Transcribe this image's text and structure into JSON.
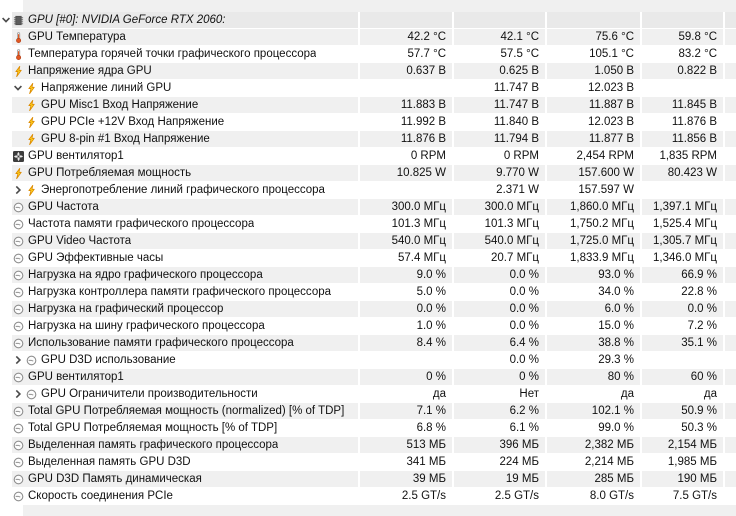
{
  "app": {
    "name": "sensor-status-panel",
    "colors": {
      "zebra_shade": "#f0f0f0",
      "header_shade": "#e9e9e9",
      "bolt_yellow": "#ffd21e",
      "bolt_outline": "#dc8a00",
      "thermometer_red": "#e25822",
      "chip_gray": "#4f4f4f",
      "clock_gray": "#8f8f8f",
      "fan_dark": "#3d3d3d"
    }
  },
  "table": {
    "header": {
      "label": "GPU [#0]: NVIDIA GeForce RTX 2060:",
      "icon": "chip-icon",
      "chevron": "down"
    },
    "rows": [
      {
        "label": "GPU Температура",
        "icon": "thermometer-icon",
        "chevron": null,
        "indent": false,
        "values": [
          "42.2 °C",
          "42.1 °C",
          "75.6 °C",
          "59.8 °C"
        ]
      },
      {
        "label": "Температура горячей точки графического процессора",
        "icon": "thermometer-icon",
        "chevron": null,
        "indent": false,
        "values": [
          "57.7 °C",
          "57.5 °C",
          "105.1 °C",
          "83.2 °C"
        ]
      },
      {
        "label": "Напряжение ядра GPU",
        "icon": "voltage-bolt-icon",
        "chevron": null,
        "indent": false,
        "values": [
          "0.637 В",
          "0.625 В",
          "1.050 В",
          "0.822 В"
        ]
      },
      {
        "label": "Напряжение линий GPU",
        "icon": "voltage-bolt-icon",
        "chevron": "down",
        "indent": false,
        "values": [
          "",
          "11.747 В",
          "12.023 В",
          ""
        ]
      },
      {
        "label": "GPU Misc1 Вход Напряжение",
        "icon": "voltage-bolt-icon",
        "chevron": null,
        "indent": true,
        "values": [
          "11.883 В",
          "11.747 В",
          "11.887 В",
          "11.845 В"
        ]
      },
      {
        "label": "GPU PCIe +12V Вход Напряжение",
        "icon": "voltage-bolt-icon",
        "chevron": null,
        "indent": true,
        "values": [
          "11.992 В",
          "11.840 В",
          "12.023 В",
          "11.876 В"
        ]
      },
      {
        "label": "GPU 8-pin #1 Вход Напряжение",
        "icon": "voltage-bolt-icon",
        "chevron": null,
        "indent": true,
        "values": [
          "11.876 В",
          "11.794 В",
          "11.877 В",
          "11.856 В"
        ]
      },
      {
        "label": "GPU вентилятор1",
        "icon": "fan-icon",
        "chevron": null,
        "indent": false,
        "values": [
          "0 RPM",
          "0 RPM",
          "2,454 RPM",
          "1,835 RPM"
        ]
      },
      {
        "label": "GPU Потребляемая мощность",
        "icon": "voltage-bolt-icon",
        "chevron": null,
        "indent": false,
        "values": [
          "10.825 W",
          "9.770 W",
          "157.600 W",
          "80.423 W"
        ]
      },
      {
        "label": "Энергопотребление линий графического процессора",
        "icon": "voltage-bolt-icon",
        "chevron": "right",
        "indent": false,
        "values": [
          "",
          "2.371 W",
          "157.597 W",
          ""
        ]
      },
      {
        "label": "GPU Частота",
        "icon": "clock-icon",
        "chevron": null,
        "indent": false,
        "values": [
          "300.0 МГц",
          "300.0 МГц",
          "1,860.0 МГц",
          "1,397.1 МГц"
        ]
      },
      {
        "label": "Частота памяти графического процессора",
        "icon": "clock-icon",
        "chevron": null,
        "indent": false,
        "values": [
          "101.3 МГц",
          "101.3 МГц",
          "1,750.2 МГц",
          "1,525.4 МГц"
        ]
      },
      {
        "label": "GPU Video Частота",
        "icon": "clock-icon",
        "chevron": null,
        "indent": false,
        "values": [
          "540.0 МГц",
          "540.0 МГц",
          "1,725.0 МГц",
          "1,305.7 МГц"
        ]
      },
      {
        "label": "GPU Эффективные часы",
        "icon": "clock-icon",
        "chevron": null,
        "indent": false,
        "values": [
          "57.4 МГц",
          "20.7 МГц",
          "1,833.9 МГц",
          "1,346.0 МГц"
        ]
      },
      {
        "label": "Нагрузка на ядро графического процессора",
        "icon": "clock-icon",
        "chevron": null,
        "indent": false,
        "values": [
          "9.0 %",
          "0.0 %",
          "93.0 %",
          "66.9 %"
        ]
      },
      {
        "label": "Нагрузка контроллера памяти графического процессора",
        "icon": "clock-icon",
        "chevron": null,
        "indent": false,
        "values": [
          "5.0 %",
          "0.0 %",
          "34.0 %",
          "22.8 %"
        ]
      },
      {
        "label": "Нагрузка на графический процессор",
        "icon": "clock-icon",
        "chevron": null,
        "indent": false,
        "values": [
          "0.0 %",
          "0.0 %",
          "6.0 %",
          "0.0 %"
        ]
      },
      {
        "label": "Нагрузка на шину графического процессора",
        "icon": "clock-icon",
        "chevron": null,
        "indent": false,
        "values": [
          "1.0 %",
          "0.0 %",
          "15.0 %",
          "7.2 %"
        ]
      },
      {
        "label": "Использование памяти графического процессора",
        "icon": "clock-icon",
        "chevron": null,
        "indent": false,
        "values": [
          "8.4 %",
          "6.4 %",
          "38.8 %",
          "35.1 %"
        ]
      },
      {
        "label": "GPU D3D использование",
        "icon": "clock-icon",
        "chevron": "right",
        "indent": false,
        "values": [
          "",
          "0.0 %",
          "29.3 %",
          ""
        ]
      },
      {
        "label": "GPU вентилятор1",
        "icon": "clock-icon",
        "chevron": null,
        "indent": false,
        "values": [
          "0 %",
          "0 %",
          "80 %",
          "60 %"
        ]
      },
      {
        "label": "GPU Ограничители производительности",
        "icon": "clock-icon",
        "chevron": "right",
        "indent": false,
        "values": [
          "да",
          "Нет",
          "да",
          "да"
        ]
      },
      {
        "label": "Total GPU Потребляемая мощность (normalized) [% of TDP]",
        "icon": "clock-icon",
        "chevron": null,
        "indent": false,
        "values": [
          "7.1 %",
          "6.2 %",
          "102.1 %",
          "50.9 %"
        ]
      },
      {
        "label": "Total GPU Потребляемая мощность [% of TDP]",
        "icon": "clock-icon",
        "chevron": null,
        "indent": false,
        "values": [
          "6.8 %",
          "6.1 %",
          "99.0 %",
          "50.3 %"
        ]
      },
      {
        "label": "Выделенная память графического процессора",
        "icon": "clock-icon",
        "chevron": null,
        "indent": false,
        "values": [
          "513 МБ",
          "396 МБ",
          "2,382 МБ",
          "2,154 МБ"
        ]
      },
      {
        "label": "Выделенная память GPU D3D",
        "icon": "clock-icon",
        "chevron": null,
        "indent": false,
        "values": [
          "341 МБ",
          "224 МБ",
          "2,214 МБ",
          "1,985 МБ"
        ]
      },
      {
        "label": "GPU D3D Память динамическая",
        "icon": "clock-icon",
        "chevron": null,
        "indent": false,
        "values": [
          "39 МБ",
          "19 МБ",
          "285 МБ",
          "190 МБ"
        ]
      },
      {
        "label": "Скорость соединения PCIe",
        "icon": "clock-icon",
        "chevron": null,
        "indent": false,
        "values": [
          "2.5 GT/s",
          "2.5 GT/s",
          "8.0 GT/s",
          "7.5 GT/s"
        ]
      }
    ]
  }
}
